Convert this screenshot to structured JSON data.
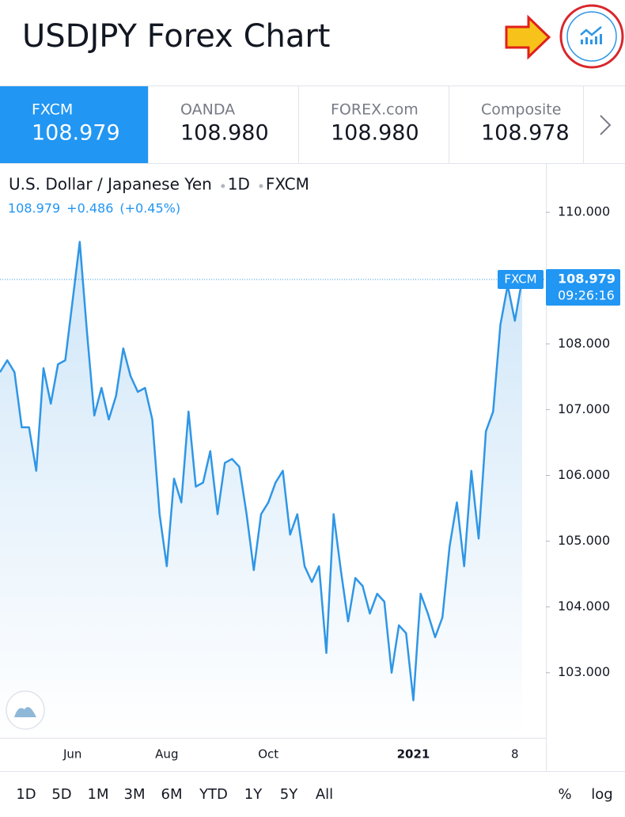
{
  "header": {
    "title": "USDJPY Forex Chart"
  },
  "tabs": [
    {
      "name": "FXCM",
      "price": "108.979"
    },
    {
      "name": "OANDA",
      "price": "108.980"
    },
    {
      "name": "FOREX.com",
      "price": "108.980"
    },
    {
      "name": "Composite",
      "price": "108.978"
    }
  ],
  "chart_data": {
    "type": "area",
    "title": "U.S. Dollar / Japanese Yen",
    "interval": "1D",
    "source": "FXCM",
    "quote": {
      "last": "108.979",
      "change": "+0.486",
      "change_pct": "(+0.45%)"
    },
    "price_tag": {
      "source": "FXCM",
      "price": "108.979",
      "time": "09:26:16"
    },
    "color": "#2f96e6",
    "categories": [
      null,
      null,
      null,
      null,
      null,
      null,
      null,
      null,
      null,
      null,
      "Jun",
      null,
      null,
      null,
      null,
      null,
      null,
      null,
      null,
      null,
      null,
      null,
      null,
      "Aug",
      null,
      null,
      null,
      null,
      null,
      null,
      null,
      null,
      null,
      null,
      null,
      null,
      null,
      "Oct",
      null,
      null,
      null,
      null,
      null,
      null,
      null,
      null,
      null,
      null,
      null,
      null,
      null,
      null,
      null,
      null,
      null,
      null,
      null,
      "2021",
      null,
      null,
      null,
      null,
      null,
      null,
      null,
      null,
      null,
      null,
      null,
      null,
      null,
      "8",
      null
    ],
    "values": [
      107.57,
      107.75,
      107.57,
      106.73,
      106.73,
      106.07,
      107.63,
      107.09,
      107.69,
      107.75,
      108.65,
      109.55,
      108.17,
      106.91,
      107.33,
      106.85,
      107.21,
      107.93,
      107.51,
      107.27,
      107.33,
      106.85,
      105.41,
      104.62,
      105.95,
      105.59,
      106.97,
      105.83,
      105.89,
      106.37,
      105.41,
      106.19,
      106.25,
      106.13,
      105.41,
      104.56,
      105.41,
      105.59,
      105.89,
      106.07,
      105.1,
      105.41,
      104.62,
      104.38,
      104.62,
      103.3,
      105.41,
      104.56,
      103.78,
      104.44,
      104.32,
      103.9,
      104.2,
      104.08,
      103.0,
      103.72,
      103.6,
      102.58,
      104.2,
      103.9,
      103.54,
      103.84,
      104.92,
      105.59,
      104.62,
      106.07,
      105.04,
      106.67,
      106.97,
      108.29,
      108.89,
      108.35,
      108.979
    ],
    "ylim": [
      102.01,
      110.7
    ],
    "yticks": [
      {
        "value": 103,
        "label": "103.000"
      },
      {
        "value": 104,
        "label": "104.000"
      },
      {
        "value": 105,
        "label": "105.000"
      },
      {
        "value": 106,
        "label": "106.000"
      },
      {
        "value": 107,
        "label": "107.000"
      },
      {
        "value": 108,
        "label": "108.000"
      },
      {
        "value": 110,
        "label": "110.000"
      }
    ]
  },
  "toolbar": {
    "ranges": [
      "1D",
      "5D",
      "1M",
      "3M",
      "6M",
      "YTD",
      "1Y",
      "5Y",
      "All"
    ],
    "scale_options": [
      "%",
      "log"
    ]
  }
}
